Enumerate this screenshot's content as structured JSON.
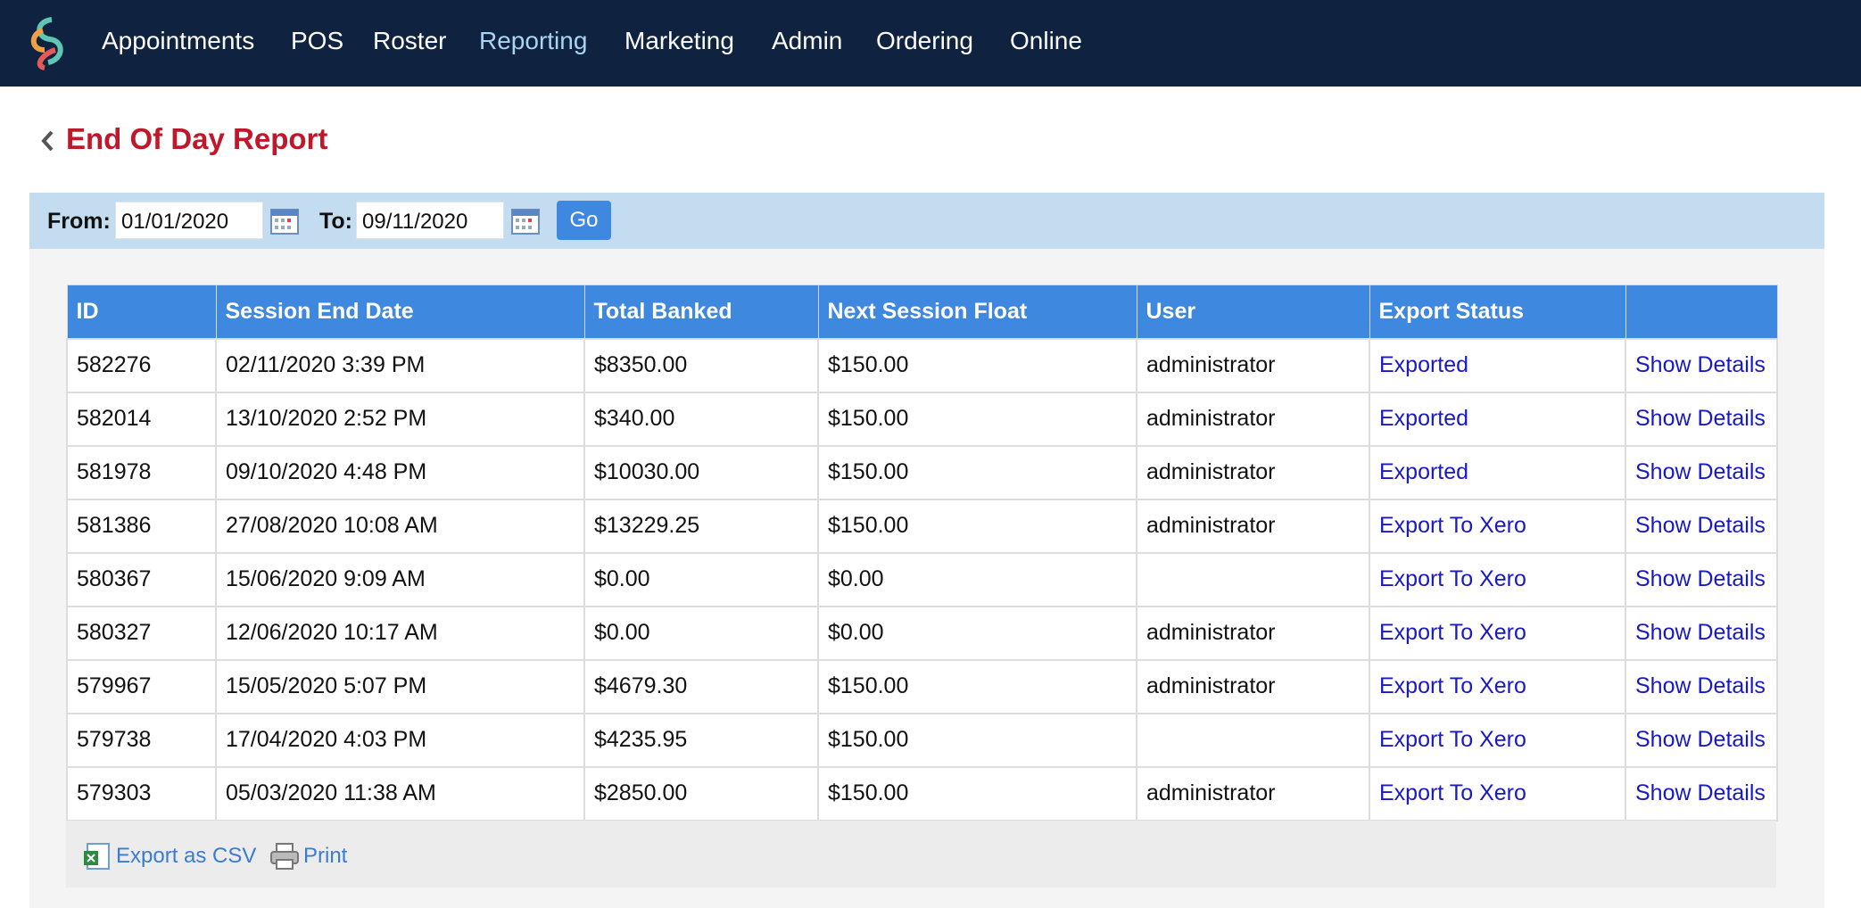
{
  "nav": {
    "items": [
      "Appointments",
      "POS",
      "Roster",
      "Reporting",
      "Marketing",
      "Admin",
      "Ordering",
      "Online"
    ]
  },
  "header": {
    "title": "End Of Day Report"
  },
  "filter": {
    "from_label": "From:",
    "from_value": "01/01/2020",
    "to_label": "To:",
    "to_value": "09/11/2020",
    "go": "Go"
  },
  "table": {
    "columns": [
      "ID",
      "Session End Date",
      "Total Banked",
      "Next Session Float",
      "User",
      "Export Status"
    ],
    "rows": [
      [
        "582276",
        "02/11/2020 3:39 PM",
        "$8350.00",
        "$150.00",
        "administrator",
        "Exported",
        "Show Details"
      ],
      [
        "582014",
        "13/10/2020 2:52 PM",
        "$340.00",
        "$150.00",
        "administrator",
        "Exported",
        "Show Details"
      ],
      [
        "581978",
        "09/10/2020 4:48 PM",
        "$10030.00",
        "$150.00",
        "administrator",
        "Exported",
        "Show Details"
      ],
      [
        "581386",
        "27/08/2020 10:08 AM",
        "$13229.25",
        "$150.00",
        "administrator",
        "Export To Xero",
        "Show Details"
      ],
      [
        "580367",
        "15/06/2020 9:09 AM",
        "$0.00",
        "$0.00",
        null,
        "Export To Xero",
        "Show Details"
      ],
      [
        "580327",
        "12/06/2020 10:17 AM",
        "$0.00",
        "$0.00",
        "administrator",
        "Export To Xero",
        "Show Details"
      ],
      [
        "579967",
        "15/05/2020 5:07 PM",
        "$4679.30",
        "$150.00",
        "administrator",
        "Export To Xero",
        "Show Details"
      ],
      [
        "579738",
        "17/04/2020 4:03 PM",
        "$4235.95",
        "$150.00",
        null,
        "Export To Xero",
        "Show Details"
      ],
      [
        "579303",
        "05/03/2020 11:38 AM",
        "$2850.00",
        "$150.00",
        "administrator",
        "Export To Xero",
        "Show Details"
      ]
    ]
  },
  "footer": {
    "export_csv": "Export as CSV",
    "print": "Print"
  }
}
